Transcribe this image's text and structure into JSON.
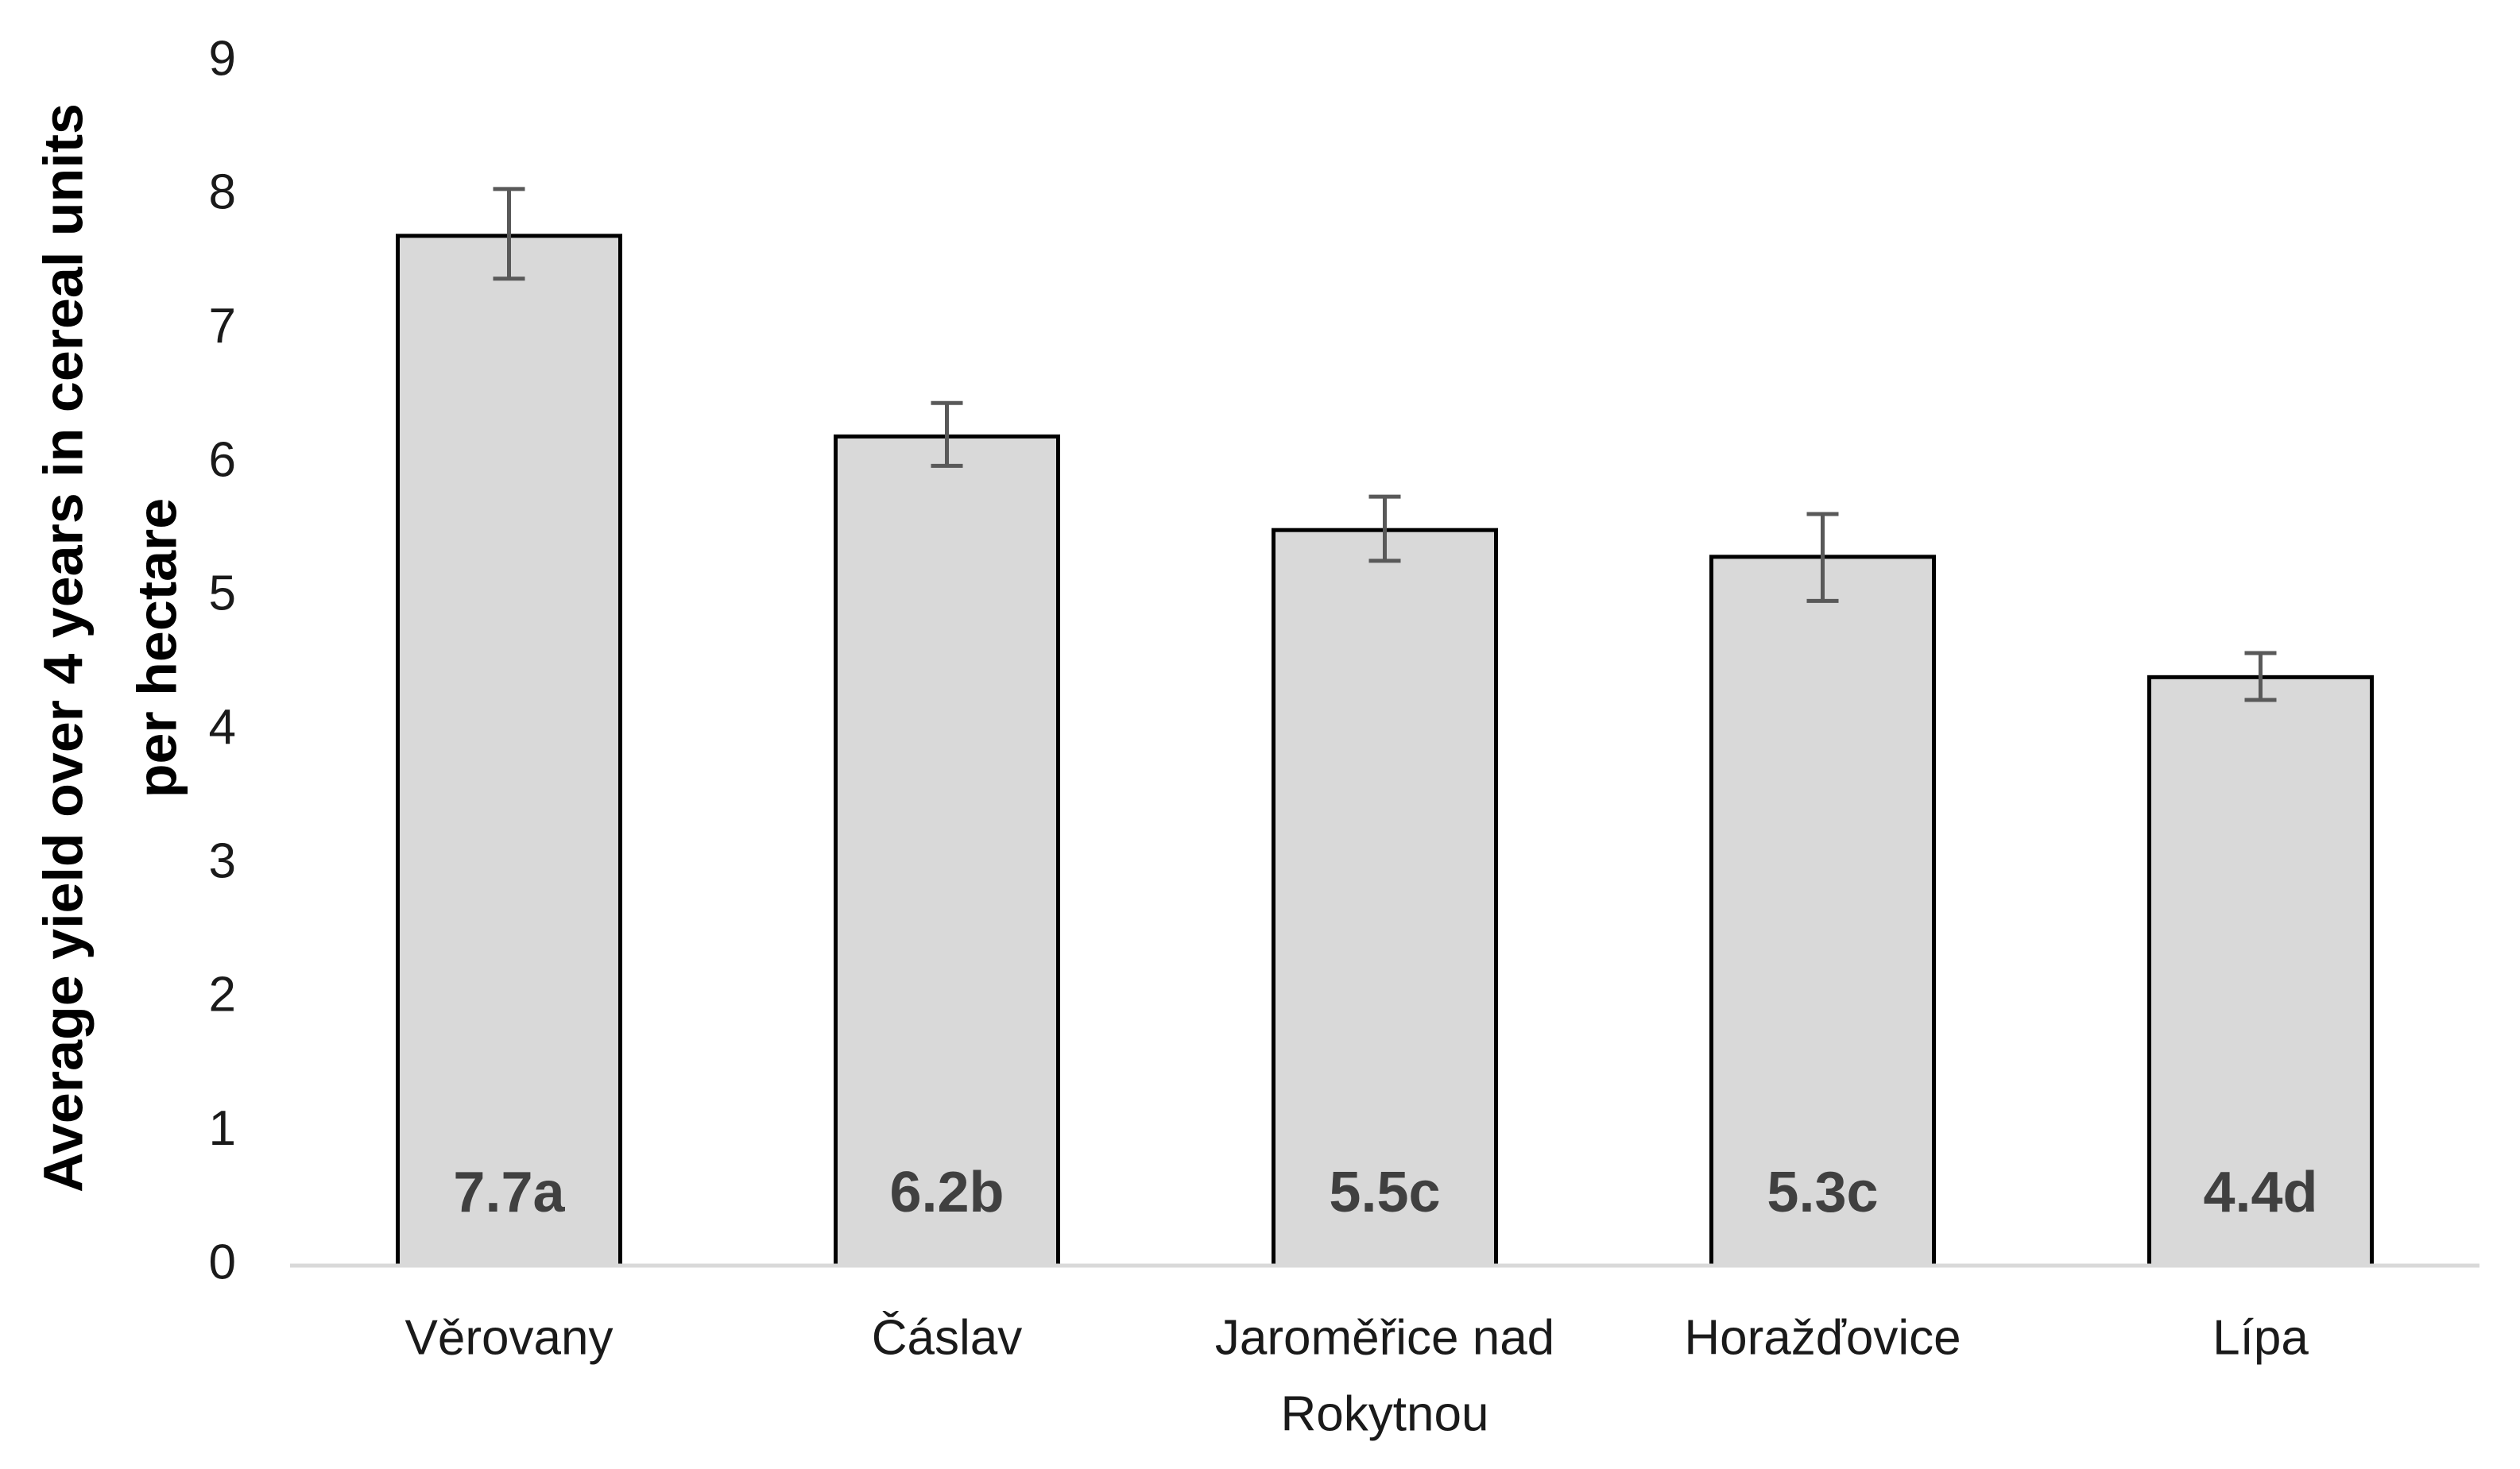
{
  "chart_data": {
    "type": "bar",
    "title": "",
    "xlabel": "",
    "ylabel_lines": [
      "Average yield over 4 years in cereal units",
      "per hectare"
    ],
    "ylim": [
      0,
      9
    ],
    "yticks": [
      "0",
      "1",
      "2",
      "3",
      "4",
      "5",
      "6",
      "7",
      "8",
      "9"
    ],
    "grid": false,
    "legend": "none",
    "categories": [
      {
        "label_lines": [
          "Věrovany"
        ]
      },
      {
        "label_lines": [
          "Čáslav"
        ]
      },
      {
        "label_lines": [
          "Jaroměřice nad",
          "Rokytnou"
        ]
      },
      {
        "label_lines": [
          "Horažďovice"
        ]
      },
      {
        "label_lines": [
          "Lípa"
        ]
      }
    ],
    "values": [
      7.7,
      6.2,
      5.5,
      5.3,
      4.4
    ],
    "error_high": [
      8.05,
      6.45,
      5.75,
      5.62,
      4.58
    ],
    "error_low": [
      7.38,
      5.98,
      5.27,
      4.97,
      4.23
    ],
    "data_labels": [
      "7.7a",
      "6.2b",
      "5.5c",
      "5.3c",
      "4.4d"
    ],
    "colors": {
      "bar_fill": "#d9d9d9",
      "bar_stroke": "#000000",
      "error_bar": "#595959",
      "axis": "#d9d9d9",
      "data_label": "#404040"
    }
  }
}
